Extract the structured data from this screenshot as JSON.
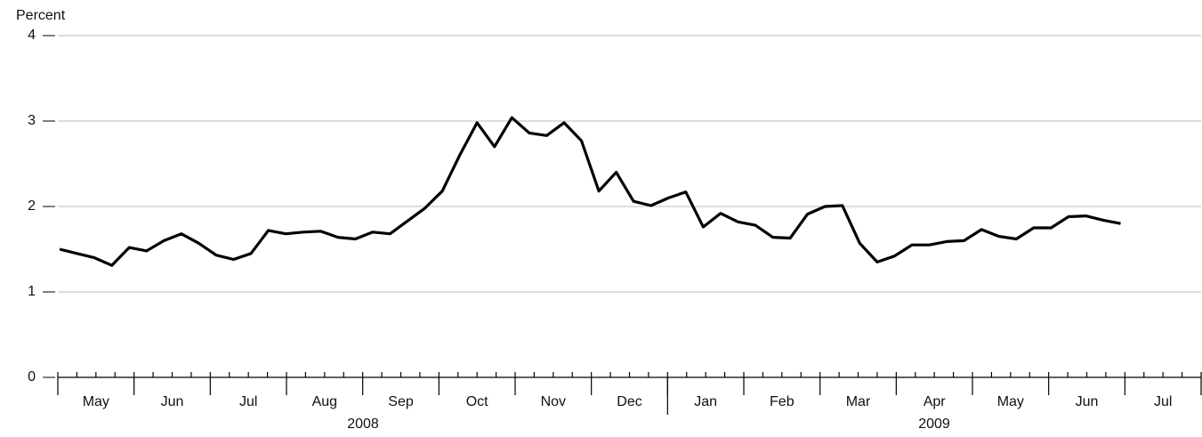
{
  "chart_data": {
    "type": "line",
    "y_label": "Percent",
    "values": [
      1.5,
      1.45,
      1.4,
      1.31,
      1.52,
      1.48,
      1.6,
      1.68,
      1.57,
      1.43,
      1.38,
      1.45,
      1.72,
      1.68,
      1.7,
      1.71,
      1.64,
      1.62,
      1.7,
      1.68,
      1.83,
      1.98,
      2.18,
      2.6,
      2.98,
      2.7,
      3.04,
      2.86,
      2.83,
      2.98,
      2.77,
      2.18,
      2.4,
      2.06,
      2.01,
      2.1,
      2.17,
      1.76,
      1.92,
      1.82,
      1.78,
      1.64,
      1.63,
      1.91,
      2.0,
      2.01,
      1.57,
      1.35,
      1.42,
      1.55,
      1.55,
      1.59,
      1.6,
      1.73,
      1.65,
      1.62,
      1.75,
      1.75,
      1.88,
      1.89,
      1.84,
      1.8
    ],
    "color": "#000000",
    "months": [
      "May",
      "Jun",
      "Jul",
      "Aug",
      "Sep",
      "Oct",
      "Nov",
      "Dec",
      "Jan",
      "Feb",
      "Mar",
      "Apr",
      "May",
      "Jun",
      "Jul"
    ],
    "years": [
      "2008",
      "2009"
    ],
    "ylim": [
      0,
      4
    ],
    "yticks": [
      0,
      1,
      2,
      3,
      4
    ],
    "grid": true
  }
}
